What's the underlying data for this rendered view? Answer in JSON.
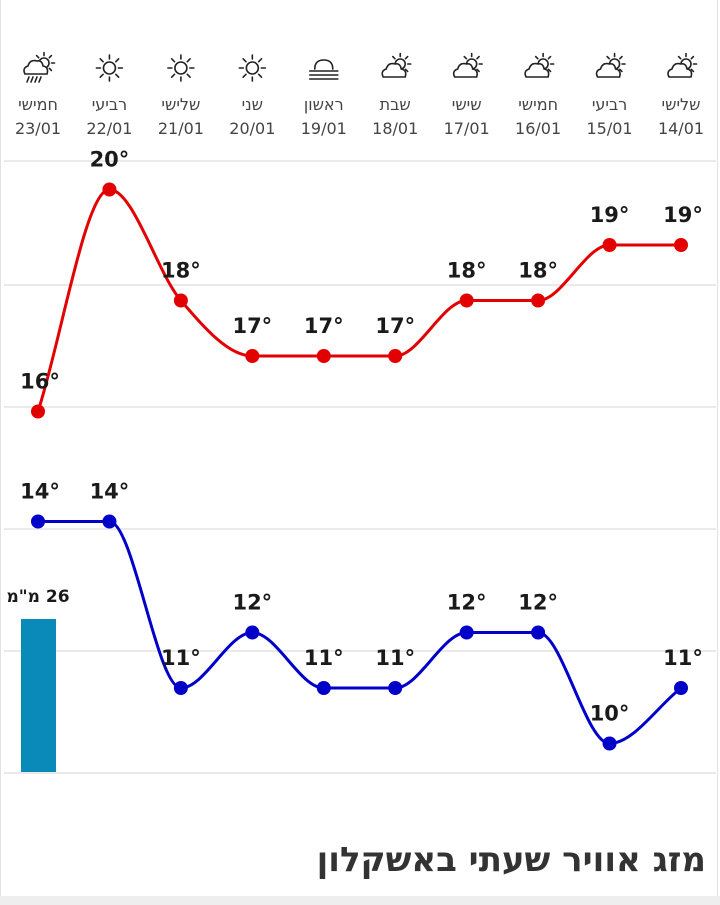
{
  "page_title": "מזג אוויר שעתי באשקלון",
  "colors": {
    "high": "#e20000",
    "low": "#0000c8",
    "rain_bar": "#0a8ab8",
    "grid": "#e3e3e3"
  },
  "chart_data": {
    "type": "line",
    "days": [
      {
        "name": "שלישי",
        "date": "14/01",
        "icon": "partly-cloudy-icon"
      },
      {
        "name": "רביעי",
        "date": "15/01",
        "icon": "partly-cloudy-icon"
      },
      {
        "name": "חמישי",
        "date": "16/01",
        "icon": "partly-cloudy-icon"
      },
      {
        "name": "שישי",
        "date": "17/01",
        "icon": "partly-cloudy-icon"
      },
      {
        "name": "שבת",
        "date": "18/01",
        "icon": "partly-cloudy-icon"
      },
      {
        "name": "ראשון",
        "date": "19/01",
        "icon": "fog-icon"
      },
      {
        "name": "שני",
        "date": "20/01",
        "icon": "sun-icon"
      },
      {
        "name": "שלישי",
        "date": "21/01",
        "icon": "sun-icon"
      },
      {
        "name": "רביעי",
        "date": "22/01",
        "icon": "sun-icon"
      },
      {
        "name": "חמישי",
        "date": "23/01",
        "icon": "rain-icon"
      }
    ],
    "series": [
      {
        "key": "high",
        "values": [
          19,
          19,
          18,
          18,
          17,
          17,
          17,
          18,
          20,
          16
        ]
      },
      {
        "key": "low",
        "values": [
          11,
          10,
          12,
          12,
          11,
          11,
          12,
          11,
          14,
          14
        ]
      }
    ],
    "unit": "°",
    "rain": {
      "day_index": 9,
      "value": 26,
      "label": "26 מ\"מ"
    }
  }
}
